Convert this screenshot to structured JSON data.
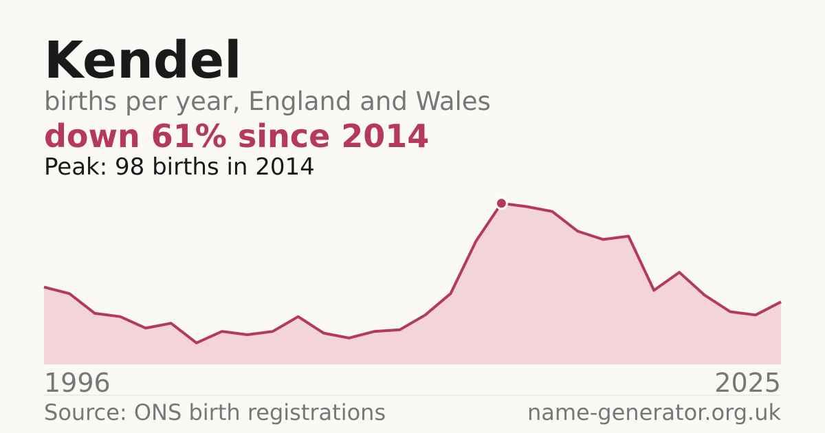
{
  "chart_data": {
    "type": "area",
    "title": "Kendel",
    "subtitle": "births per year, England and Wales",
    "headline": "down 61% since 2014",
    "annotation": "Peak: 98 births in 2014",
    "source": "Source: ONS birth registrations",
    "site": "name-generator.org.uk",
    "x": [
      1996,
      1997,
      1998,
      1999,
      2000,
      2001,
      2002,
      2003,
      2004,
      2005,
      2006,
      2007,
      2008,
      2009,
      2010,
      2011,
      2012,
      2013,
      2014,
      2015,
      2016,
      2017,
      2018,
      2019,
      2020,
      2021,
      2022,
      2023,
      2024,
      2025
    ],
    "values": [
      47,
      43,
      31,
      29,
      22,
      25,
      13,
      20,
      18,
      20,
      29,
      19,
      16,
      20,
      21,
      30,
      43,
      75,
      98,
      96,
      93,
      81,
      76,
      78,
      45,
      56,
      42,
      32,
      30,
      38
    ],
    "color": "#b5395a",
    "fill": "#f2d4da",
    "xlim": [
      1996,
      2025
    ],
    "xticks": [
      1996,
      2025
    ],
    "ylim": [
      0,
      100
    ]
  }
}
